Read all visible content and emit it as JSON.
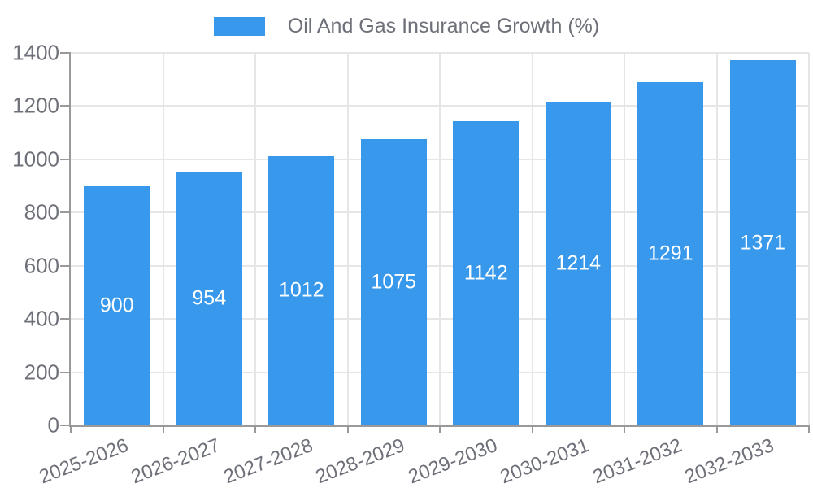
{
  "legend": {
    "label": "Oil And Gas Insurance Growth (%)"
  },
  "chart_data": {
    "type": "bar",
    "title": "Oil And Gas Insurance Growth (%)",
    "categories": [
      "2025-2026",
      "2026-2027",
      "2027-2028",
      "2028-2029",
      "2029-2030",
      "2030-2031",
      "2031-2032",
      "2032-2033"
    ],
    "values": [
      900,
      954,
      1012,
      1075,
      1142,
      1214,
      1291,
      1371
    ],
    "value_labels": [
      "900",
      "954",
      "1012",
      "1075",
      "1142",
      "1214",
      "1291",
      "1371"
    ],
    "xlabel": "",
    "ylabel": "",
    "ylim": [
      0,
      1400
    ],
    "ytick_step": 200,
    "ytick_labels": [
      "0",
      "200",
      "400",
      "600",
      "800",
      "1000",
      "1200",
      "1400"
    ],
    "grid": true,
    "legend_position": "top-center",
    "colors": {
      "bar": "#3899EC",
      "value_label": "#FFFFFF",
      "axis_line": "#999999",
      "grid_line": "#E6E6E6",
      "text": "#6E7079"
    }
  }
}
